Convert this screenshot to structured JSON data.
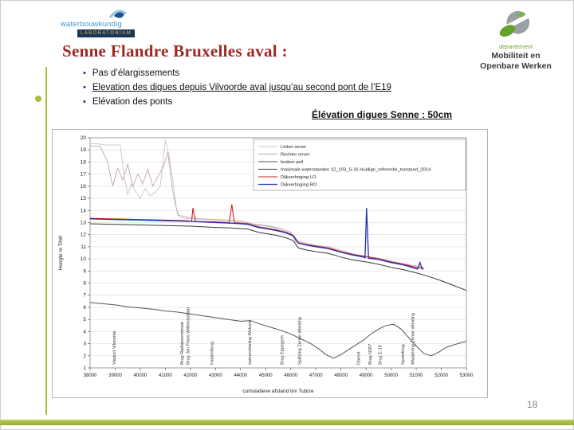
{
  "slide": {
    "title": "Senne Flandre Bruxelles aval :",
    "bullet_glyph": "•",
    "bullets": [
      {
        "text": "Pas d’élargissements",
        "underline": false
      },
      {
        "text": "Elevation des digues depuis Vilvoorde aval  jusqu’au second pont de l’E19",
        "underline": true
      },
      {
        "text": "Elévation des ponts",
        "underline": false
      }
    ],
    "chart_caption": "Élévation digues Senne : 50cm",
    "page_number": "18"
  },
  "logos": {
    "waterbouwkundig": {
      "name": "waterbouwkundig",
      "sublabel": "LABORATORIUM"
    },
    "mow": {
      "line1": "departement",
      "line2": "Mobiliteit en",
      "line3": "Openbare Werken"
    }
  },
  "colors": {
    "accent_green": "#a9bd43",
    "title_maroon": "#9c2824",
    "logo_blue": "#3f93d0",
    "logo_navy": "#17365d"
  },
  "chart_data": {
    "type": "line",
    "title": "",
    "xlabel": "cumulatieve afstand tov Tubize",
    "ylabel": "Hoogte m TAW",
    "xlim": [
      38000,
      53000
    ],
    "ylim": [
      1,
      20
    ],
    "grid": "horizontal",
    "legend_position": "top-right-inside",
    "x_ticks": [
      38000,
      39000,
      40000,
      41000,
      42000,
      43000,
      44000,
      45000,
      46000,
      47000,
      48000,
      49000,
      50000,
      51000,
      52000,
      53000
    ],
    "y_ticks": [
      1,
      2,
      3,
      4,
      5,
      6,
      7,
      8,
      9,
      10,
      11,
      12,
      13,
      14,
      15,
      16,
      17,
      18,
      19,
      20
    ],
    "series": [
      {
        "name": "Linker oever",
        "color": "#c6c6c6",
        "width": 0.9,
        "points": [
          [
            38000,
            19.5
          ],
          [
            38300,
            19.5
          ],
          [
            38600,
            19.4
          ],
          [
            39000,
            19.4
          ],
          [
            39200,
            19.4
          ],
          [
            39350,
            17.0
          ],
          [
            39500,
            15.3
          ],
          [
            39650,
            16.2
          ],
          [
            39800,
            15.6
          ],
          [
            40000,
            15.0
          ],
          [
            40200,
            15.8
          ],
          [
            40400,
            15.2
          ],
          [
            40600,
            15.5
          ],
          [
            40800,
            16.0
          ],
          [
            41000,
            19.8
          ],
          [
            41150,
            18.5
          ],
          [
            41300,
            16.5
          ],
          [
            41450,
            14.0
          ],
          [
            41600,
            13.4
          ],
          [
            42000,
            13.3
          ],
          [
            42500,
            13.25
          ],
          [
            43000,
            13.2
          ],
          [
            43500,
            13.15
          ],
          [
            44000,
            13.1
          ],
          [
            44300,
            13.0
          ],
          [
            44600,
            12.8
          ],
          [
            45000,
            12.7
          ],
          [
            45300,
            12.6
          ],
          [
            45600,
            12.4
          ],
          [
            46000,
            12.1
          ],
          [
            46200,
            11.4
          ],
          [
            46500,
            11.2
          ],
          [
            47000,
            11.0
          ],
          [
            47500,
            10.9
          ],
          [
            48000,
            10.6
          ],
          [
            48500,
            10.3
          ],
          [
            49000,
            10.1
          ],
          [
            49500,
            10.0
          ],
          [
            50000,
            9.7
          ],
          [
            50500,
            9.5
          ],
          [
            51000,
            9.3
          ],
          [
            51300,
            9.2
          ]
        ]
      },
      {
        "name": "Rechter oever",
        "color": "#c3a6a6",
        "width": 0.9,
        "points": [
          [
            38000,
            19.3
          ],
          [
            38400,
            19.3
          ],
          [
            38700,
            18.0
          ],
          [
            38900,
            16.0
          ],
          [
            39100,
            17.5
          ],
          [
            39300,
            16.5
          ],
          [
            39500,
            17.8
          ],
          [
            39700,
            16.0
          ],
          [
            39900,
            17.0
          ],
          [
            40100,
            16.2
          ],
          [
            40300,
            17.4
          ],
          [
            40500,
            16.0
          ],
          [
            40700,
            16.8
          ],
          [
            40900,
            17.5
          ],
          [
            41100,
            18.8
          ],
          [
            41300,
            15.5
          ],
          [
            41500,
            13.6
          ],
          [
            42000,
            13.4
          ],
          [
            42500,
            13.3
          ],
          [
            43000,
            13.25
          ],
          [
            43500,
            13.2
          ],
          [
            44000,
            13.1
          ],
          [
            44400,
            12.9
          ],
          [
            44800,
            12.8
          ],
          [
            45200,
            12.7
          ],
          [
            45600,
            12.5
          ],
          [
            46000,
            12.2
          ],
          [
            46200,
            11.5
          ],
          [
            46600,
            11.3
          ],
          [
            47000,
            11.1
          ],
          [
            47500,
            11.0
          ],
          [
            48000,
            10.7
          ],
          [
            48500,
            10.4
          ],
          [
            49000,
            10.2
          ],
          [
            49500,
            10.05
          ],
          [
            50000,
            9.8
          ],
          [
            50500,
            9.6
          ],
          [
            51000,
            9.4
          ],
          [
            51300,
            9.3
          ]
        ]
      },
      {
        "name": "bodem peil",
        "color": "#555555",
        "width": 1,
        "points": [
          [
            38000,
            6.4
          ],
          [
            38500,
            6.3
          ],
          [
            39000,
            6.2
          ],
          [
            39500,
            6.05
          ],
          [
            40000,
            5.95
          ],
          [
            40500,
            5.85
          ],
          [
            41000,
            5.7
          ],
          [
            41500,
            5.6
          ],
          [
            42000,
            5.45
          ],
          [
            42500,
            5.3
          ],
          [
            43000,
            5.15
          ],
          [
            43500,
            5.0
          ],
          [
            44000,
            4.85
          ],
          [
            44400,
            4.9
          ],
          [
            44800,
            4.6
          ],
          [
            45200,
            4.35
          ],
          [
            45600,
            4.1
          ],
          [
            46000,
            3.8
          ],
          [
            46400,
            3.4
          ],
          [
            46800,
            3.0
          ],
          [
            47100,
            2.6
          ],
          [
            47400,
            2.1
          ],
          [
            47700,
            1.8
          ],
          [
            48000,
            2.1
          ],
          [
            48300,
            2.5
          ],
          [
            48600,
            2.9
          ],
          [
            48900,
            3.3
          ],
          [
            49200,
            3.8
          ],
          [
            49500,
            4.2
          ],
          [
            49800,
            4.5
          ],
          [
            50100,
            4.6
          ],
          [
            50400,
            4.2
          ],
          [
            50700,
            3.5
          ],
          [
            51000,
            2.8
          ],
          [
            51300,
            2.2
          ],
          [
            51600,
            2.0
          ],
          [
            51900,
            2.3
          ],
          [
            52200,
            2.7
          ],
          [
            52500,
            2.9
          ],
          [
            52800,
            3.1
          ],
          [
            53000,
            3.2
          ]
        ]
      },
      {
        "name": "maximale waterstanden 12_103_S-16 Huidige_referentie_toestand_2014",
        "color": "#383838",
        "width": 1,
        "points": [
          [
            38000,
            12.9
          ],
          [
            39000,
            12.85
          ],
          [
            40000,
            12.8
          ],
          [
            41000,
            12.75
          ],
          [
            42000,
            12.7
          ],
          [
            43000,
            12.6
          ],
          [
            43600,
            12.55
          ],
          [
            44000,
            12.5
          ],
          [
            44300,
            12.45
          ],
          [
            44700,
            12.2
          ],
          [
            45000,
            12.1
          ],
          [
            45400,
            11.95
          ],
          [
            45800,
            11.75
          ],
          [
            46100,
            11.5
          ],
          [
            46300,
            10.9
          ],
          [
            46600,
            10.75
          ],
          [
            47000,
            10.6
          ],
          [
            47500,
            10.45
          ],
          [
            48000,
            10.15
          ],
          [
            48500,
            9.9
          ],
          [
            49000,
            9.75
          ],
          [
            49500,
            9.55
          ],
          [
            50000,
            9.3
          ],
          [
            50500,
            9.1
          ],
          [
            51000,
            8.85
          ],
          [
            51500,
            8.55
          ],
          [
            52000,
            8.2
          ],
          [
            52500,
            7.8
          ],
          [
            53000,
            7.4
          ]
        ]
      },
      {
        "name": "Dijkverhoging LO",
        "color": "#cc2222",
        "width": 1.1,
        "points": [
          [
            38000,
            13.35
          ],
          [
            39000,
            13.3
          ],
          [
            40000,
            13.25
          ],
          [
            41000,
            13.2
          ],
          [
            41900,
            13.15
          ],
          [
            42050,
            13.1
          ],
          [
            42100,
            14.2
          ],
          [
            42200,
            13.1
          ],
          [
            43000,
            13.05
          ],
          [
            43550,
            13.0
          ],
          [
            43650,
            14.5
          ],
          [
            43750,
            13.0
          ],
          [
            44000,
            12.95
          ],
          [
            44300,
            12.9
          ],
          [
            44700,
            12.65
          ],
          [
            45000,
            12.55
          ],
          [
            45400,
            12.4
          ],
          [
            45800,
            12.2
          ],
          [
            46100,
            11.95
          ],
          [
            46300,
            11.35
          ],
          [
            46600,
            11.2
          ],
          [
            47000,
            11.05
          ],
          [
            47500,
            10.9
          ],
          [
            48000,
            10.6
          ],
          [
            48500,
            10.35
          ],
          [
            49000,
            10.2
          ],
          [
            49500,
            10.0
          ],
          [
            50000,
            9.75
          ],
          [
            50500,
            9.55
          ],
          [
            51000,
            9.3
          ],
          [
            51300,
            9.2
          ]
        ]
      },
      {
        "name": "Dijkverhoging RO",
        "color": "#2231b8",
        "width": 1.3,
        "points": [
          [
            38000,
            13.3
          ],
          [
            39000,
            13.25
          ],
          [
            40000,
            13.2
          ],
          [
            41000,
            13.15
          ],
          [
            42000,
            13.1
          ],
          [
            43000,
            13.0
          ],
          [
            43600,
            12.95
          ],
          [
            44000,
            12.9
          ],
          [
            44300,
            12.85
          ],
          [
            44700,
            12.6
          ],
          [
            45000,
            12.5
          ],
          [
            45400,
            12.35
          ],
          [
            45800,
            12.15
          ],
          [
            46100,
            11.9
          ],
          [
            46300,
            11.3
          ],
          [
            46600,
            11.15
          ],
          [
            47000,
            11.0
          ],
          [
            47500,
            10.85
          ],
          [
            48000,
            10.55
          ],
          [
            48500,
            10.3
          ],
          [
            48900,
            10.15
          ],
          [
            48960,
            10.1
          ],
          [
            49020,
            14.2
          ],
          [
            49100,
            10.05
          ],
          [
            49500,
            9.95
          ],
          [
            50000,
            9.7
          ],
          [
            50500,
            9.5
          ],
          [
            50900,
            9.25
          ],
          [
            51050,
            9.15
          ],
          [
            51150,
            9.7
          ],
          [
            51250,
            9.1
          ]
        ]
      }
    ],
    "annotations": [
      {
        "x": 38950,
        "label": "Viaduct Vilvoorde"
      },
      {
        "x": 41650,
        "label": "Brug Radiatorenstraat"
      },
      {
        "x": 41900,
        "label": "Brug Jan Frans Willemsstraat"
      },
      {
        "x": 42850,
        "label": "Kasteelbrug"
      },
      {
        "x": 44350,
        "label": "samenvloeiing Woluwe"
      },
      {
        "x": 45650,
        "label": "Brug Eppegem"
      },
      {
        "x": 46350,
        "label": "Splitsing Zenne afleiding"
      },
      {
        "x": 48700,
        "label": "Dorent"
      },
      {
        "x": 49150,
        "label": "Brug N267"
      },
      {
        "x": 49550,
        "label": "Brug E-19"
      },
      {
        "x": 50450,
        "label": "Spoorbrug"
      },
      {
        "x": 50850,
        "label": "Afwatering Zenne afleiding"
      }
    ]
  }
}
